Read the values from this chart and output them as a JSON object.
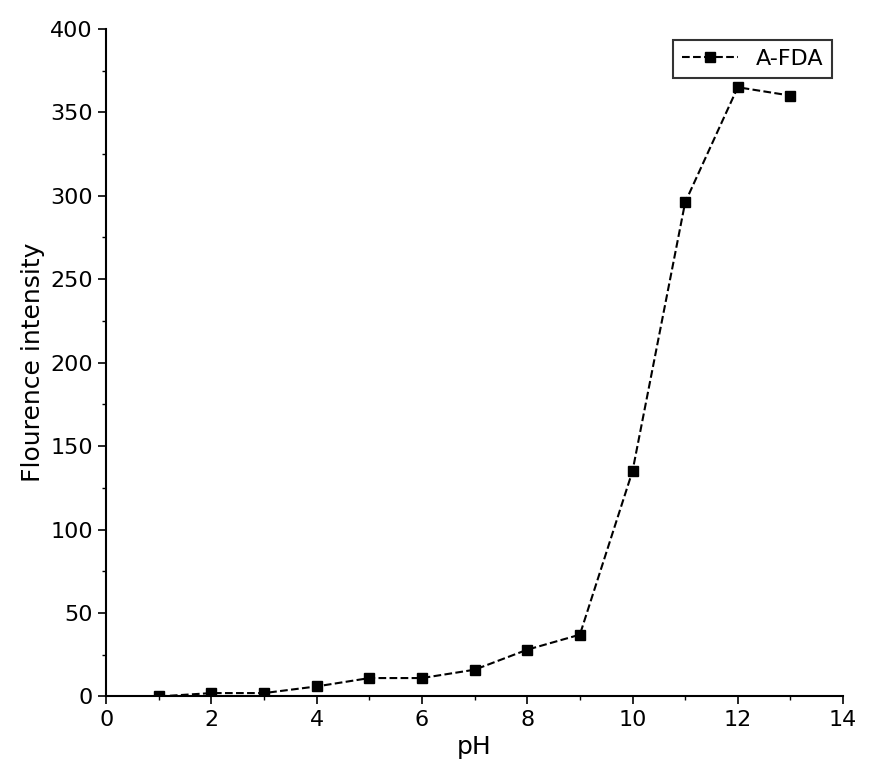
{
  "x": [
    1,
    2,
    3,
    4,
    5,
    6,
    7,
    8,
    9,
    10,
    11,
    12,
    13
  ],
  "y": [
    0,
    2,
    2,
    6,
    11,
    11,
    16,
    28,
    37,
    135,
    296,
    365,
    360
  ],
  "line_color": "#000000",
  "marker": "s",
  "marker_color": "#000000",
  "marker_size": 7,
  "line_width": 1.5,
  "xlabel": "pH",
  "ylabel": "Flourence intensity",
  "xlim": [
    0,
    14
  ],
  "ylim": [
    0,
    400
  ],
  "xticks": [
    0,
    2,
    4,
    6,
    8,
    10,
    12,
    14
  ],
  "yticks": [
    0,
    50,
    100,
    150,
    200,
    250,
    300,
    350,
    400
  ],
  "legend_label": "A-FDA",
  "label_fontsize": 18,
  "tick_fontsize": 16,
  "legend_fontsize": 16,
  "background_color": "#ffffff"
}
